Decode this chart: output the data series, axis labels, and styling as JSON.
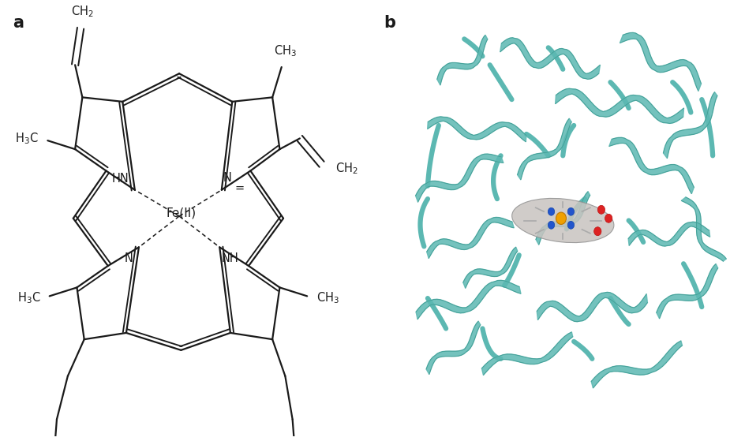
{
  "panel_a_label": "a",
  "panel_b_label": "b",
  "background_color": "#ffffff",
  "line_color": "#1a1a1a",
  "line_width": 1.6,
  "fe_label": "Fe(II)",
  "hn_label": "HN",
  "nh_label": "NH",
  "label_fontsize": 10.5,
  "panel_label_fontsize": 15,
  "teal_color": "#5cb8b2",
  "teal_dark": "#3d9990",
  "teal_light": "#7eccc7"
}
